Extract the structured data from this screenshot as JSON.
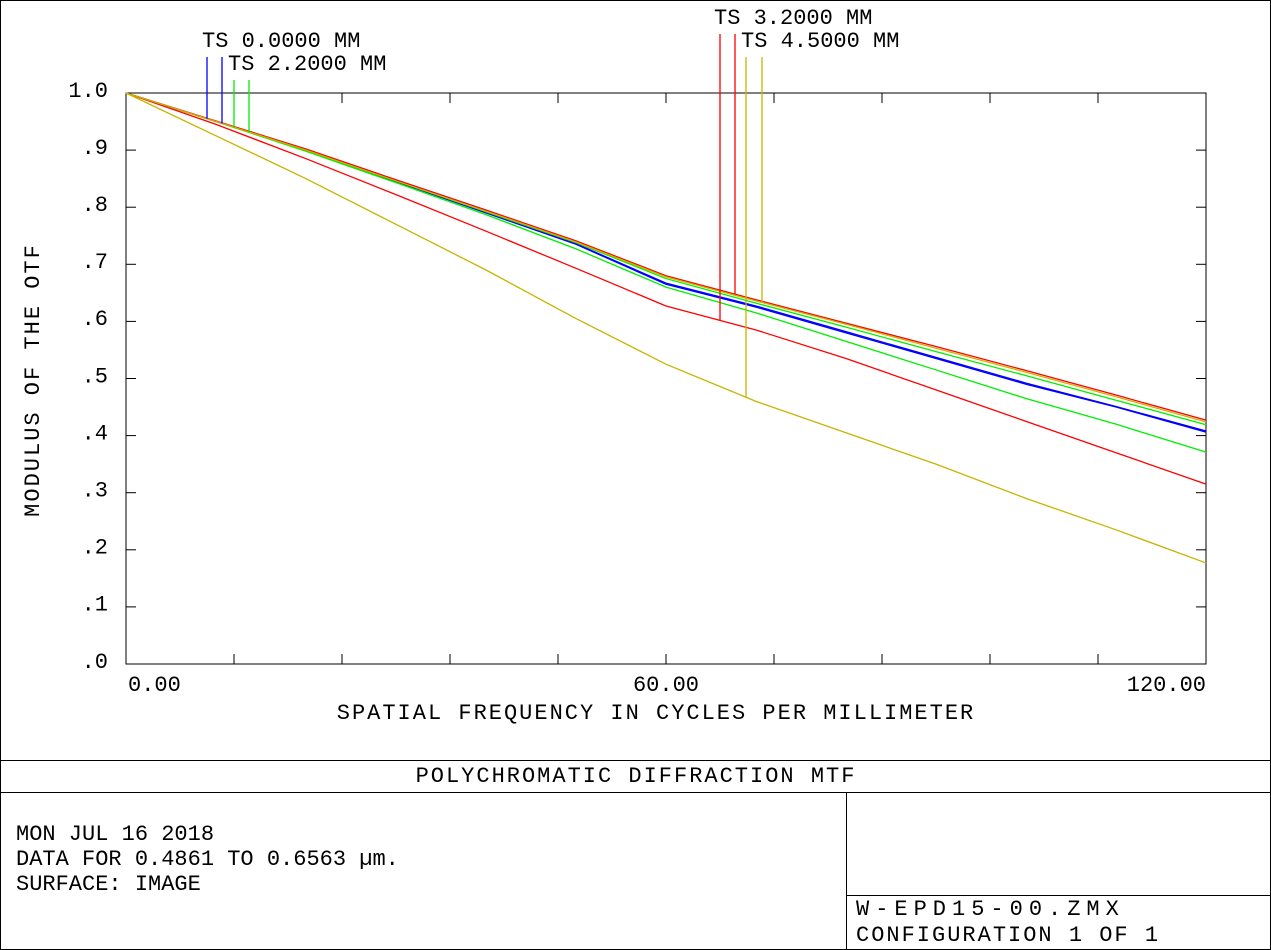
{
  "chart_data": {
    "type": "line",
    "x_label": "SPATIAL FREQUENCY IN CYCLES PER MILLIMETER",
    "y_label": "MODULUS OF THE OTF",
    "caption": "POLYCHROMATIC DIFFRACTION MTF",
    "notes": [
      "MON JUL 16 2018",
      "DATA FOR 0.4861 TO 0.6563 µm.",
      "SURFACE: IMAGE"
    ],
    "file": "W-EPD15-00.ZMX",
    "configuration": "CONFIGURATION 1 OF 1",
    "xlim": [
      0,
      120
    ],
    "ylim": [
      0,
      1
    ],
    "xticks": [
      {
        "value": 0,
        "label": "0.00"
      },
      {
        "value": 60,
        "label": "60.00"
      },
      {
        "value": 120,
        "label": "120.00"
      }
    ],
    "xtick_marks": [
      0,
      12,
      24,
      36,
      48,
      60,
      72,
      84,
      96,
      108,
      120
    ],
    "yticks": [
      {
        "value": 0,
        "label": ".0"
      },
      {
        "value": 0.1,
        "label": ".1"
      },
      {
        "value": 0.2,
        "label": ".2"
      },
      {
        "value": 0.3,
        "label": ".3"
      },
      {
        "value": 0.4,
        "label": ".4"
      },
      {
        "value": 0.5,
        "label": ".5"
      },
      {
        "value": 0.6,
        "label": ".6"
      },
      {
        "value": 0.7,
        "label": ".7"
      },
      {
        "value": 0.8,
        "label": ".8"
      },
      {
        "value": 0.9,
        "label": ".9"
      },
      {
        "value": 1.0,
        "label": "1.0"
      }
    ],
    "x": [
      0,
      10,
      20,
      30,
      40,
      50,
      60,
      70,
      80,
      90,
      100,
      110,
      120
    ],
    "series": [
      {
        "name": "TS 0.0000 MM",
        "color": "#0000ff",
        "values": [
          1,
          0.95,
          0.9,
          0.845,
          0.79,
          0.735,
          0.665,
          0.625,
          0.58,
          0.535,
          0.49,
          0.45,
          0.406
        ],
        "sagittal": [
          1,
          0.95,
          0.9,
          0.846,
          0.791,
          0.736,
          0.667,
          0.627,
          0.582,
          0.537,
          0.492,
          0.451,
          0.408
        ]
      },
      {
        "name": "TS 2.2000 MM",
        "color": "#00ee00",
        "values": [
          1,
          0.95,
          0.898,
          0.843,
          0.787,
          0.727,
          0.66,
          0.615,
          0.565,
          0.515,
          0.465,
          0.42,
          0.371
        ],
        "sagittal": [
          1,
          0.95,
          0.9,
          0.846,
          0.792,
          0.738,
          0.675,
          0.632,
          0.59,
          0.547,
          0.505,
          0.462,
          0.419
        ]
      },
      {
        "name": "TS 3.2000 MM",
        "color": "#ff0000",
        "values": [
          1,
          0.945,
          0.885,
          0.822,
          0.758,
          0.693,
          0.627,
          0.585,
          0.535,
          0.48,
          0.425,
          0.37,
          0.315
        ],
        "sagittal": [
          1,
          0.951,
          0.902,
          0.848,
          0.795,
          0.741,
          0.68,
          0.638,
          0.597,
          0.556,
          0.514,
          0.471,
          0.427
        ]
      },
      {
        "name": "TS 4.5000 MM",
        "color": "#c8b400",
        "values": [
          1,
          0.925,
          0.85,
          0.77,
          0.69,
          0.605,
          0.525,
          0.46,
          0.405,
          0.35,
          0.29,
          0.235,
          0.177
        ],
        "sagittal": [
          1,
          0.95,
          0.9,
          0.846,
          0.793,
          0.739,
          0.678,
          0.636,
          0.595,
          0.553,
          0.511,
          0.468,
          0.424
        ]
      }
    ]
  }
}
